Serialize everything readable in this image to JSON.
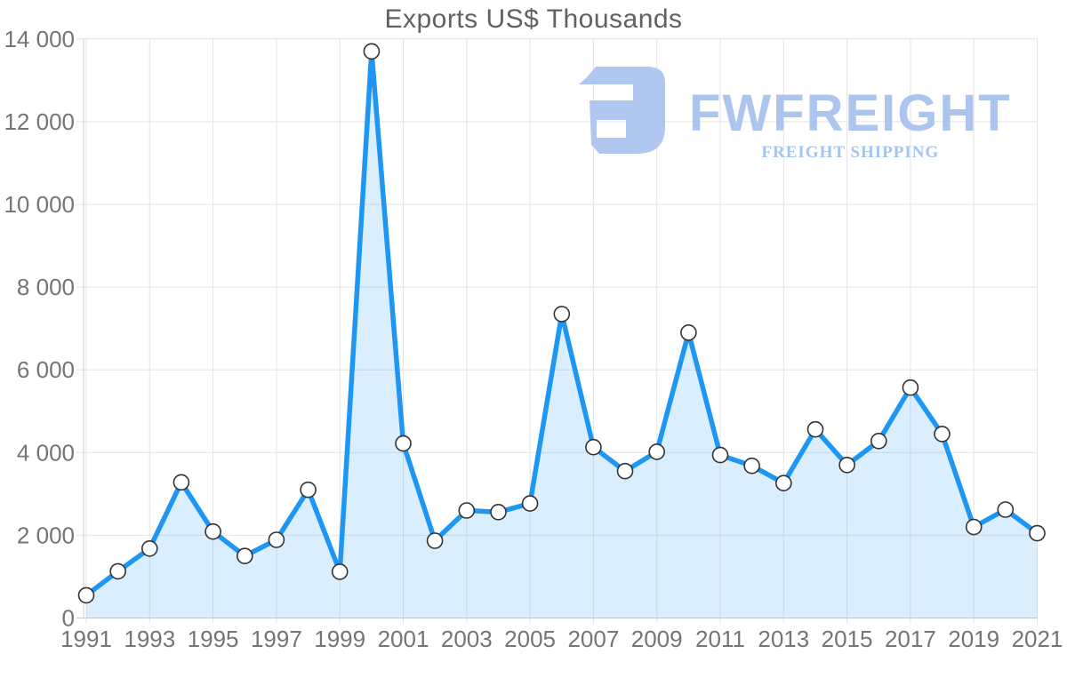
{
  "watermark": {
    "brand": "FWFREIGHT",
    "tagline": "FREIGHT SHIPPING",
    "logo_icon": "fwfreight-mark",
    "mark_color": "#aac4ef",
    "brand_color": "#a6c1ee",
    "tagline_color": "#9dbff1"
  },
  "chart_data": {
    "type": "area",
    "title": "Exports US$ Thousands",
    "series_name": "Exports",
    "units": "US$ Thousands",
    "x": [
      1991,
      1992,
      1993,
      1994,
      1995,
      1996,
      1997,
      1998,
      1999,
      2000,
      2001,
      2002,
      2003,
      2004,
      2005,
      2006,
      2007,
      2008,
      2009,
      2010,
      2011,
      2012,
      2013,
      2014,
      2015,
      2016,
      2017,
      2018,
      2019,
      2020,
      2021
    ],
    "values": [
      550,
      1130,
      1680,
      3280,
      2090,
      1500,
      1890,
      3100,
      1120,
      13700,
      4220,
      1870,
      2600,
      2560,
      2770,
      7350,
      4130,
      3550,
      4020,
      6900,
      3940,
      3680,
      3260,
      4560,
      3700,
      4280,
      5570,
      4450,
      2200,
      2620,
      2050
    ],
    "xlim": [
      1991,
      2021
    ],
    "ylim": [
      0,
      14000
    ],
    "y_tick_values": [
      0,
      2000,
      4000,
      6000,
      8000,
      10000,
      12000,
      14000
    ],
    "y_tick_labels": [
      "0",
      "2 000",
      "4 000",
      "6 000",
      "8 000",
      "10 000",
      "12 000",
      "14 000"
    ],
    "x_tick_values": [
      1991,
      1993,
      1995,
      1997,
      1999,
      2001,
      2003,
      2005,
      2007,
      2009,
      2011,
      2013,
      2015,
      2017,
      2019,
      2021
    ],
    "x_tick_labels": [
      "1991",
      "1993",
      "1995",
      "1997",
      "1999",
      "2001",
      "2003",
      "2005",
      "2007",
      "2009",
      "2011",
      "2013",
      "2015",
      "2017",
      "2019",
      "2021"
    ],
    "grid": true,
    "legend": "none",
    "marker": "circle",
    "colors": {
      "line": "#1e96f4",
      "fill": "rgba(30,150,244,0.16)",
      "marker_fill": "#ffffff",
      "marker_stroke": "#333333",
      "grid": "#e4e4e4",
      "axis": "#cccccc",
      "tick_label": "#757575",
      "title": "#616161"
    }
  }
}
